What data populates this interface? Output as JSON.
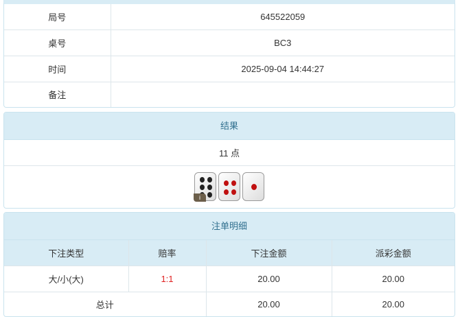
{
  "info": {
    "rows": [
      {
        "label": "局号",
        "value": "645522059"
      },
      {
        "label": "桌号",
        "value": "BC3"
      },
      {
        "label": "时间",
        "value": "2025-09-04 14:44:27"
      },
      {
        "label": "备注",
        "value": ""
      }
    ]
  },
  "result": {
    "title": "结果",
    "points_text": "11 点",
    "dice": [
      6,
      4,
      1
    ],
    "info_badge": "i"
  },
  "bets": {
    "title": "注单明细",
    "headers": [
      "下注类型",
      "赔率",
      "下注金额",
      "派彩金额"
    ],
    "rows": [
      {
        "type": "大/小(大)",
        "odds": "1:1",
        "amount": "20.00",
        "payout": "20.00"
      }
    ],
    "total": {
      "label": "总计",
      "amount": "20.00",
      "payout": "20.00"
    }
  },
  "colors": {
    "header_bg": "#d8ecf5",
    "header_text": "#31708f",
    "odds": "#e02020"
  }
}
